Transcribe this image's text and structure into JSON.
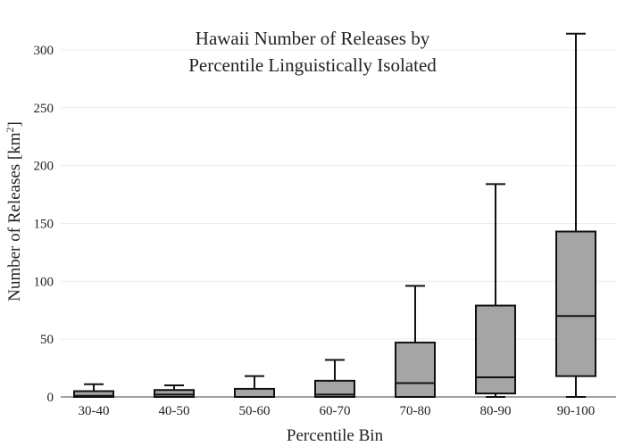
{
  "chart_data": {
    "type": "box",
    "title_lines": [
      "Hawaii Number of Releases by",
      "Percentile Linguistically Isolated"
    ],
    "xlabel": "Percentile Bin",
    "ylabel_main": "Number of Releases  [km",
    "ylabel_sup": "2",
    "ylabel_close": "]",
    "ylim": [
      0,
      320
    ],
    "yticks": [
      0,
      50,
      100,
      150,
      200,
      250,
      300
    ],
    "grid": true,
    "box_color": "#a5a5a5",
    "categories": [
      "30-40",
      "40-50",
      "50-60",
      "60-70",
      "70-80",
      "80-90",
      "90-100"
    ],
    "boxes": [
      {
        "min": 0,
        "q1": 0,
        "median": 1,
        "q3": 5,
        "max": 11
      },
      {
        "min": 0,
        "q1": 0,
        "median": 2,
        "q3": 6,
        "max": 10
      },
      {
        "min": 0,
        "q1": 0,
        "median": 0,
        "q3": 7,
        "max": 18
      },
      {
        "min": 0,
        "q1": 0,
        "median": 2,
        "q3": 14,
        "max": 32
      },
      {
        "min": 0,
        "q1": 0,
        "median": 12,
        "q3": 47,
        "max": 96
      },
      {
        "min": 0,
        "q1": 3,
        "median": 17,
        "q3": 79,
        "max": 184
      },
      {
        "min": 0,
        "q1": 18,
        "median": 70,
        "q3": 143,
        "max": 314
      }
    ]
  }
}
